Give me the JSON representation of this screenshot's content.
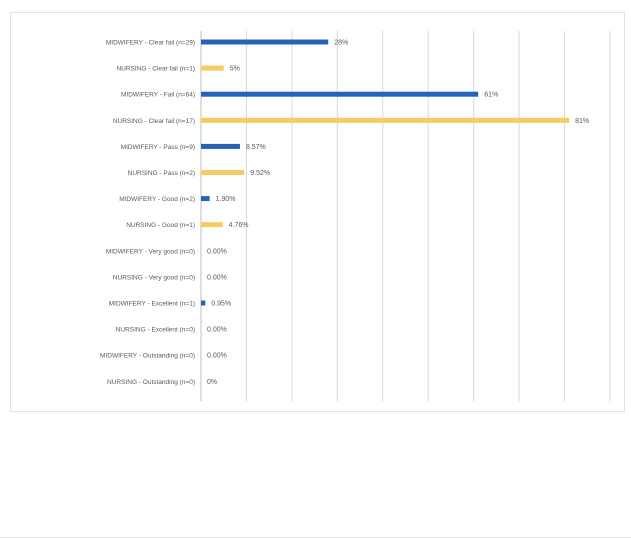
{
  "chart_data": {
    "type": "bar",
    "orientation": "horizontal",
    "title": "",
    "xlabel": "",
    "ylabel": "",
    "xlim": [
      0,
      90
    ],
    "grid": true,
    "legend": "none",
    "x_ticks": [
      "0%",
      "10%",
      "20%",
      "30%",
      "40%",
      "50%",
      "60%",
      "70%",
      "80%",
      "90%"
    ],
    "colors": {
      "midwifery": "#2563b8",
      "nursing": "#f6cc62",
      "grid": "#d9d9d9",
      "axis": "#bfbfbf",
      "text": "#595959"
    },
    "bars": [
      {
        "category": "MIDWIFERY - Clear fail (n=29)",
        "value": 28,
        "label": "28%",
        "group": "midwifery"
      },
      {
        "category": "NURSING - Clear fail (n=1)",
        "value": 5,
        "label": "5%",
        "group": "nursing"
      },
      {
        "category": "MIDWIFERY - Fail (n=64)",
        "value": 61,
        "label": "61%",
        "group": "midwifery"
      },
      {
        "category": "NURSING - Clear fail (n=17)",
        "value": 81,
        "label": "81%",
        "group": "nursing"
      },
      {
        "category": "MIDWIFERY - Pass (n=9)",
        "value": 8.57,
        "label": "8.57%",
        "group": "midwifery"
      },
      {
        "category": "NURSING - Pass (n=2)",
        "value": 9.52,
        "label": "9.52%",
        "group": "nursing"
      },
      {
        "category": "MIDWIFERY - Good (n=2)",
        "value": 1.9,
        "label": "1.90%",
        "group": "midwifery"
      },
      {
        "category": "NURSING - Good (n=1)",
        "value": 4.76,
        "label": "4.76%",
        "group": "nursing"
      },
      {
        "category": "MIDWIFERY - Very good (n=0)",
        "value": 0,
        "label": "0.00%",
        "group": "midwifery"
      },
      {
        "category": "NURSING - Very good (n=0)",
        "value": 0,
        "label": "0.00%",
        "group": "nursing"
      },
      {
        "category": "MIDWIFERY - Excellent (n=1)",
        "value": 0.95,
        "label": "0.95%",
        "group": "midwifery"
      },
      {
        "category": "NURSING - Excellent (n=0)",
        "value": 0,
        "label": "0.00%",
        "group": "nursing"
      },
      {
        "category": "MIDWIFERY - Outstanding (n=0)",
        "value": 0,
        "label": "0.00%",
        "group": "midwifery"
      },
      {
        "category": "NURSING - Outstanding (n=0)",
        "value": 0,
        "label": "0%",
        "group": "nursing"
      }
    ]
  }
}
